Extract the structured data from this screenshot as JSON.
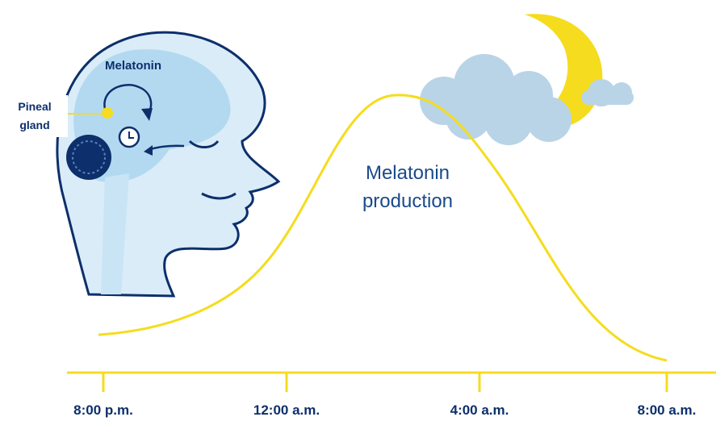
{
  "head": {
    "melatonin": "Melatonin",
    "pineal_gland": [
      "Pineal",
      "gland"
    ]
  },
  "curve_label": [
    "Melatonin",
    "production"
  ],
  "time_axis": [
    "8:00 p.m.",
    "12:00 a.m.",
    "4:00 a.m.",
    "8:00 a.m."
  ]
}
